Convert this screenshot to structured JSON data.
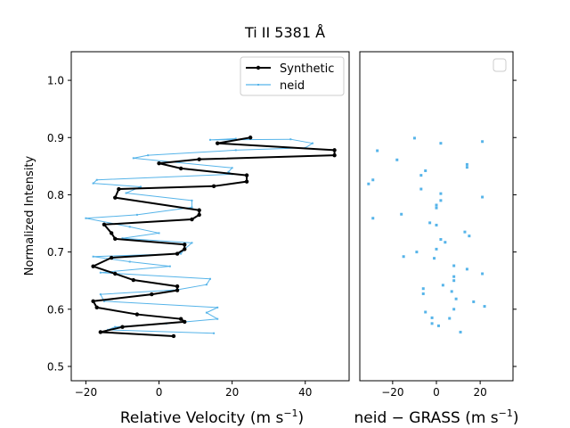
{
  "chart_data": {
    "title": "Ti II 5381 Å",
    "colors": {
      "synthetic": "#000000",
      "neid": "#56b4e9",
      "residual": "#56b4e9"
    },
    "panels": [
      {
        "type": "line",
        "xlabel": "Relative Velocity (m s",
        "xlabel_sup": "−1",
        "xlabel_end": ")",
        "ylabel": "Normalized Intensity",
        "xlim": [
          -24,
          52
        ],
        "ylim": [
          0.475,
          1.05
        ],
        "xticks": [
          -20,
          0,
          20,
          40
        ],
        "xticklabels": [
          "−20",
          "0",
          "20",
          "40"
        ],
        "yticks": [
          0.5,
          0.6,
          0.7,
          0.8,
          0.9,
          1.0
        ],
        "yticklabels": [
          "0.5",
          "0.6",
          "0.7",
          "0.8",
          "0.9",
          "1.0"
        ],
        "legend": {
          "position": "top-right",
          "entries": [
            "Synthetic",
            "neid"
          ]
        },
        "series": [
          {
            "name": "Synthetic",
            "points": [
              [
                4,
                0.553
              ],
              [
                -16,
                0.56
              ],
              [
                -10,
                0.569
              ],
              [
                7,
                0.578
              ],
              [
                6,
                0.583
              ],
              [
                -6,
                0.591
              ],
              [
                -17,
                0.603
              ],
              [
                -18,
                0.614
              ],
              [
                -2,
                0.626
              ],
              [
                5,
                0.633
              ],
              [
                5,
                0.64
              ],
              [
                -7,
                0.651
              ],
              [
                -12,
                0.662
              ],
              [
                -18,
                0.675
              ],
              [
                -13,
                0.69
              ],
              [
                5,
                0.697
              ],
              [
                7,
                0.705
              ],
              [
                7,
                0.713
              ],
              [
                -12,
                0.723
              ],
              [
                -13,
                0.733
              ],
              [
                -15,
                0.748
              ],
              [
                9,
                0.757
              ],
              [
                11,
                0.765
              ],
              [
                11,
                0.773
              ],
              [
                -12,
                0.795
              ],
              [
                -11,
                0.81
              ],
              [
                15,
                0.815
              ],
              [
                24,
                0.823
              ],
              [
                24,
                0.834
              ],
              [
                6,
                0.846
              ],
              [
                0,
                0.855
              ],
              [
                11,
                0.862
              ],
              [
                48,
                0.869
              ],
              [
                48,
                0.878
              ],
              [
                16,
                0.89
              ],
              [
                25,
                0.9
              ]
            ]
          },
          {
            "name": "neid",
            "points": [
              [
                15,
                0.558
              ],
              [
                -14,
                0.564
              ],
              [
                -12,
                0.569
              ],
              [
                2,
                0.575
              ],
              [
                16,
                0.583
              ],
              [
                13,
                0.594
              ],
              [
                16,
                0.603
              ],
              [
                -15,
                0.614
              ],
              [
                -16,
                0.626
              ],
              [
                5,
                0.634
              ],
              [
                13,
                0.643
              ],
              [
                14,
                0.653
              ],
              [
                -16,
                0.664
              ],
              [
                3,
                0.675
              ],
              [
                -8,
                0.683
              ],
              [
                -18,
                0.692
              ],
              [
                6,
                0.697
              ],
              [
                7,
                0.705
              ],
              [
                9,
                0.716
              ],
              [
                -10,
                0.724
              ],
              [
                0,
                0.733
              ],
              [
                -8,
                0.744
              ],
              [
                -20,
                0.759
              ],
              [
                -6,
                0.765
              ],
              [
                9,
                0.778
              ],
              [
                9,
                0.79
              ],
              [
                -9,
                0.803
              ],
              [
                -5,
                0.814
              ],
              [
                -18,
                0.82
              ],
              [
                -17,
                0.826
              ],
              [
                20,
                0.836
              ],
              [
                19,
                0.84
              ],
              [
                20,
                0.847
              ],
              [
                -7,
                0.864
              ],
              [
                -3,
                0.869
              ],
              [
                21,
                0.878
              ],
              [
                40,
                0.882
              ],
              [
                42,
                0.89
              ],
              [
                36,
                0.897
              ],
              [
                14,
                0.896
              ],
              [
                21,
                0.898
              ]
            ]
          }
        ]
      },
      {
        "type": "scatter",
        "xlabel": "neid  −  GRASS (m s",
        "xlabel_sup": "−1",
        "xlabel_end": ")",
        "xlim": [
          -35,
          35
        ],
        "ylim": [
          0.475,
          1.05
        ],
        "xticks": [
          -20,
          0,
          20
        ],
        "xticklabels": [
          "−20",
          "0",
          "20"
        ],
        "legend": {
          "position": "top-right",
          "entries": []
        },
        "series": [
          {
            "points": [
              [
                -10,
                0.899
              ],
              [
                2,
                0.89
              ],
              [
                21,
                0.893
              ],
              [
                -27,
                0.877
              ],
              [
                -18,
                0.861
              ],
              [
                14,
                0.853
              ],
              [
                14,
                0.848
              ],
              [
                -5,
                0.842
              ],
              [
                -7,
                0.834
              ],
              [
                -29,
                0.826
              ],
              [
                -31,
                0.819
              ],
              [
                -7,
                0.81
              ],
              [
                2,
                0.802
              ],
              [
                21,
                0.796
              ],
              [
                2,
                0.79
              ],
              [
                0,
                0.782
              ],
              [
                0,
                0.777
              ],
              [
                -16,
                0.766
              ],
              [
                -29,
                0.759
              ],
              [
                -3,
                0.751
              ],
              [
                0,
                0.747
              ],
              [
                13,
                0.735
              ],
              [
                15,
                0.728
              ],
              [
                2,
                0.722
              ],
              [
                4,
                0.717
              ],
              [
                0,
                0.705
              ],
              [
                -9,
                0.7
              ],
              [
                -15,
                0.692
              ],
              [
                -1,
                0.689
              ],
              [
                8,
                0.676
              ],
              [
                14,
                0.67
              ],
              [
                21,
                0.662
              ],
              [
                8,
                0.657
              ],
              [
                8,
                0.65
              ],
              [
                3,
                0.642
              ],
              [
                -6,
                0.636
              ],
              [
                7,
                0.631
              ],
              [
                -6,
                0.627
              ],
              [
                9,
                0.618
              ],
              [
                17,
                0.613
              ],
              [
                22,
                0.605
              ],
              [
                8,
                0.6
              ],
              [
                -5,
                0.595
              ],
              [
                -2,
                0.585
              ],
              [
                6,
                0.584
              ],
              [
                -2,
                0.575
              ],
              [
                1,
                0.571
              ],
              [
                11,
                0.56
              ]
            ]
          }
        ]
      }
    ]
  }
}
